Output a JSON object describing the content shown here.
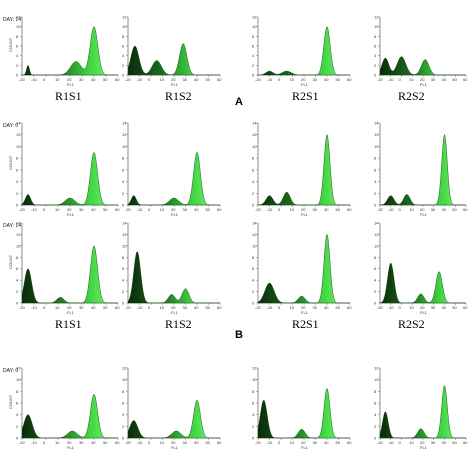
{
  "figure": {
    "section_labels": [
      "A",
      "B"
    ],
    "sample_labels": [
      "R1S1",
      "R1S2",
      "R2S1",
      "R2S2"
    ],
    "day_labels": {
      "d0": "DAY: 0",
      "d14": "DAY: 14"
    },
    "y_axis_label": "COUNT",
    "x_axis_label": "FL1"
  },
  "chart_data": [
    {
      "type": "area",
      "panel": "A",
      "day": "DAY: 14",
      "xlim": [
        -20,
        60
      ],
      "series": [
        {
          "sample": "R1S1",
          "peaks": [
            [
              -15,
              2,
              1.2
            ],
            [
              25,
              2.8,
              4.5
            ],
            [
              40,
              10,
              3.2
            ]
          ]
        },
        {
          "sample": "R1S2",
          "peaks": [
            [
              -14,
              6,
              3.5
            ],
            [
              5,
              3.0,
              4
            ],
            [
              28,
              6.5,
              3.2
            ]
          ]
        },
        {
          "sample": "R2S1",
          "peaks": [
            [
              -10,
              0.8,
              3
            ],
            [
              5,
              0.8,
              4
            ],
            [
              40,
              10,
              2.8
            ]
          ]
        },
        {
          "sample": "R2S2",
          "peaks": [
            [
              -15,
              3.5,
              3.2
            ],
            [
              0,
              3.8,
              4
            ],
            [
              22,
              3.2,
              3.5
            ]
          ]
        }
      ]
    },
    {
      "type": "area",
      "panel": "B",
      "day": "DAY: 0",
      "xlim": [
        -20,
        60
      ],
      "series": [
        {
          "sample": "R1S1",
          "peaks": [
            [
              -15,
              1.8,
              2.2
            ],
            [
              20,
              1.2,
              4
            ],
            [
              40,
              9,
              3
            ]
          ]
        },
        {
          "sample": "R1S2",
          "peaks": [
            [
              -15,
              1.6,
              2.2
            ],
            [
              20,
              1.2,
              4
            ],
            [
              40,
              9,
              3
            ]
          ]
        },
        {
          "sample": "R2S1",
          "peaks": [
            [
              -10,
              1.6,
              3
            ],
            [
              5,
              2.2,
              3
            ],
            [
              40,
              12,
              2.6
            ]
          ]
        },
        {
          "sample": "R2S2",
          "peaks": [
            [
              -10,
              1.6,
              3
            ],
            [
              5,
              1.8,
              3
            ],
            [
              40,
              12,
              2.6
            ]
          ]
        }
      ]
    },
    {
      "type": "area",
      "panel": "B",
      "day": "DAY: 14",
      "xlim": [
        -20,
        60
      ],
      "series": [
        {
          "sample": "R1S1",
          "peaks": [
            [
              -15,
              6,
              3
            ],
            [
              12,
              1,
              3
            ],
            [
              40,
              10,
              3
            ]
          ]
        },
        {
          "sample": "R1S2",
          "peaks": [
            [
              -12,
              9,
              3
            ],
            [
              18,
              1.5,
              3
            ],
            [
              30,
              2.5,
              3
            ]
          ]
        },
        {
          "sample": "R2S1",
          "peaks": [
            [
              -10,
              3.5,
              4
            ],
            [
              18,
              1.2,
              3
            ],
            [
              40,
              12,
              2.6
            ]
          ]
        },
        {
          "sample": "R2S2",
          "peaks": [
            [
              -10,
              7,
              3
            ],
            [
              18,
              1.6,
              3
            ],
            [
              35,
              5.5,
              3
            ]
          ]
        }
      ]
    },
    {
      "type": "area",
      "panel": "",
      "day": "DAY: 0",
      "xlim": [
        -20,
        60
      ],
      "series": [
        {
          "sample": "R1S1",
          "peaks": [
            [
              -15,
              4,
              3.5
            ],
            [
              22,
              1.2,
              4
            ],
            [
              40,
              7.5,
              3
            ]
          ]
        },
        {
          "sample": "R1S2",
          "peaks": [
            [
              -15,
              3,
              3.5
            ],
            [
              22,
              1.2,
              4
            ],
            [
              40,
              6.5,
              3
            ]
          ]
        },
        {
          "sample": "R2S1",
          "peaks": [
            [
              -15,
              6.5,
              3
            ],
            [
              18,
              1.5,
              3
            ],
            [
              40,
              8.5,
              2.6
            ]
          ]
        },
        {
          "sample": "R2S2",
          "peaks": [
            [
              -15,
              4.5,
              2.6
            ],
            [
              18,
              1.6,
              3
            ],
            [
              40,
              9,
              2.6
            ]
          ]
        }
      ]
    }
  ]
}
